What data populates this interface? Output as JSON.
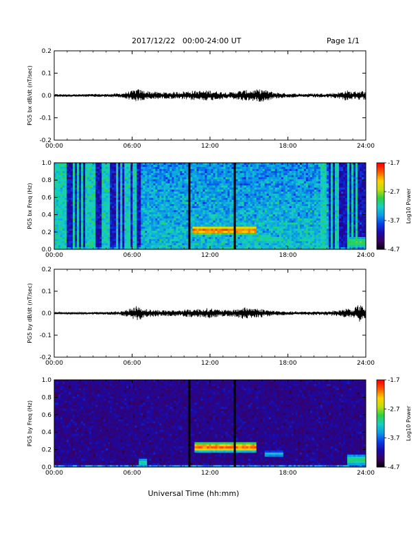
{
  "header": {
    "date_range": "2017/12/22   00:00-24:00 UT",
    "page": "Page 1/1"
  },
  "xlabel": "Universal Time (hh:mm)",
  "colors": {
    "trace": "#000000",
    "spectrogram_scale": [
      "#000000",
      "#3a0060",
      "#1a0aa8",
      "#0a3ce8",
      "#0a9ae8",
      "#15d0c0",
      "#2ed040",
      "#bede10",
      "#ffd000",
      "#ff5a00",
      "#ff0000"
    ]
  },
  "chart_data": [
    {
      "type": "line",
      "ylabel": "PG5 bx dB/dt (nT/sec)",
      "xlim": [
        0,
        24
      ],
      "ylim": [
        -0.2,
        0.2
      ],
      "x_ticks": [
        "00:00",
        "06:00",
        "12:00",
        "18:00",
        "24:00"
      ],
      "y_ticks": [
        "0.2",
        "0.1",
        "0.0",
        "-0.1",
        "-0.2"
      ],
      "series": [
        {
          "x": [
            0,
            1,
            2,
            3,
            4,
            5,
            5.5,
            6,
            6.4,
            6.8,
            7.5,
            8.5,
            9.5,
            10.5,
            11.5,
            12,
            12.5,
            13,
            13.5,
            14,
            14.5,
            15,
            15.5,
            16,
            16.5,
            17,
            17.5,
            18,
            19,
            20,
            21,
            22,
            22.5,
            23,
            23.5,
            24
          ],
          "y_envelope": [
            0.005,
            0.005,
            0.005,
            0.006,
            0.006,
            0.008,
            0.012,
            0.018,
            0.025,
            0.02,
            0.015,
            0.012,
            0.014,
            0.018,
            0.018,
            0.02,
            0.016,
            0.014,
            0.012,
            0.016,
            0.02,
            0.02,
            0.022,
            0.024,
            0.018,
            0.012,
            0.01,
            0.008,
            0.007,
            0.008,
            0.008,
            0.012,
            0.02,
            0.014,
            0.02,
            0.015
          ]
        }
      ]
    },
    {
      "type": "heatmap",
      "ylabel": "PG5 bx Freq (Hz)",
      "xlim": [
        0,
        24
      ],
      "ylim": [
        0.0,
        1.0
      ],
      "x_ticks": [
        "00:00",
        "06:00",
        "12:00",
        "18:00",
        "24:00"
      ],
      "y_ticks": [
        "1.0",
        "0.8",
        "0.6",
        "0.4",
        "0.2",
        "0.0"
      ],
      "colorbar": {
        "label": "Log10 Power",
        "min": -4.7,
        "max": -1.7,
        "ticks": [
          "-1.7",
          "-2.7",
          "-3.7",
          "-4.7"
        ]
      },
      "features": [
        {
          "kind": "elevated-background",
          "t_start": 6.6,
          "t_end": 21.2,
          "level": 0.55
        },
        {
          "kind": "band",
          "t_start": 10.7,
          "t_end": 15.6,
          "f_center": 0.22,
          "f_width": 0.05,
          "level": 0.95
        },
        {
          "kind": "band",
          "t_start": 15.6,
          "t_end": 17.5,
          "f_center": 0.12,
          "f_width": 0.03,
          "level": 0.6
        },
        {
          "kind": "band",
          "t_start": 22.5,
          "t_end": 24,
          "f_center": 0.08,
          "f_width": 0.06,
          "level": 0.65
        },
        {
          "kind": "data-gap",
          "t_start": 10.3,
          "t_end": 10.55
        },
        {
          "kind": "data-gap",
          "t_start": 13.9,
          "t_end": 14.05
        }
      ]
    },
    {
      "type": "line",
      "ylabel": "PG5 by dB/dt (nT/sec)",
      "xlim": [
        0,
        24
      ],
      "ylim": [
        -0.2,
        0.2
      ],
      "x_ticks": [
        "00:00",
        "06:00",
        "12:00",
        "18:00",
        "24:00"
      ],
      "y_ticks": [
        "0.2",
        "0.1",
        "0.0",
        "-0.1",
        "-0.2"
      ],
      "series": [
        {
          "x": [
            0,
            1,
            2,
            3,
            4,
            5,
            5.5,
            6,
            6.4,
            6.8,
            7.5,
            8.5,
            9.5,
            10.5,
            11.5,
            12,
            12.5,
            13,
            13.5,
            14,
            14.5,
            15,
            15.5,
            16,
            16.5,
            17,
            17.5,
            18,
            19,
            20,
            21,
            22,
            22.5,
            23,
            23.5,
            24
          ],
          "y_envelope": [
            0.004,
            0.004,
            0.004,
            0.005,
            0.005,
            0.008,
            0.012,
            0.02,
            0.03,
            0.02,
            0.014,
            0.012,
            0.012,
            0.016,
            0.018,
            0.02,
            0.015,
            0.013,
            0.012,
            0.016,
            0.022,
            0.022,
            0.02,
            0.016,
            0.012,
            0.01,
            0.008,
            0.007,
            0.006,
            0.007,
            0.008,
            0.012,
            0.02,
            0.015,
            0.035,
            0.02
          ]
        }
      ]
    },
    {
      "type": "heatmap",
      "ylabel": "PG5 by Freq (Hz)",
      "xlim": [
        0,
        24
      ],
      "ylim": [
        0.0,
        1.0
      ],
      "x_ticks": [
        "00:00",
        "06:00",
        "12:00",
        "18:00",
        "24:00"
      ],
      "y_ticks": [
        "1.0",
        "0.8",
        "0.6",
        "0.4",
        "0.2",
        "0.0"
      ],
      "colorbar": {
        "label": "Log10 Power",
        "min": -4.7,
        "max": -1.7,
        "ticks": [
          "-1.7",
          "-2.7",
          "-3.7",
          "-4.7"
        ]
      },
      "features": [
        {
          "kind": "band",
          "t_start": 10.8,
          "t_end": 15.6,
          "f_center": 0.23,
          "f_width": 0.05,
          "level": 0.95
        },
        {
          "kind": "band",
          "t_start": 16.2,
          "t_end": 17.6,
          "f_center": 0.15,
          "f_width": 0.03,
          "level": 0.5
        },
        {
          "kind": "band",
          "t_start": 6.5,
          "t_end": 7.2,
          "f_center": 0.05,
          "f_width": 0.05,
          "level": 0.55
        },
        {
          "kind": "band",
          "t_start": 22.5,
          "t_end": 24,
          "f_center": 0.08,
          "f_width": 0.06,
          "level": 0.6
        },
        {
          "kind": "data-gap",
          "t_start": 10.3,
          "t_end": 10.55
        },
        {
          "kind": "data-gap",
          "t_start": 13.9,
          "t_end": 14.05
        }
      ]
    }
  ]
}
